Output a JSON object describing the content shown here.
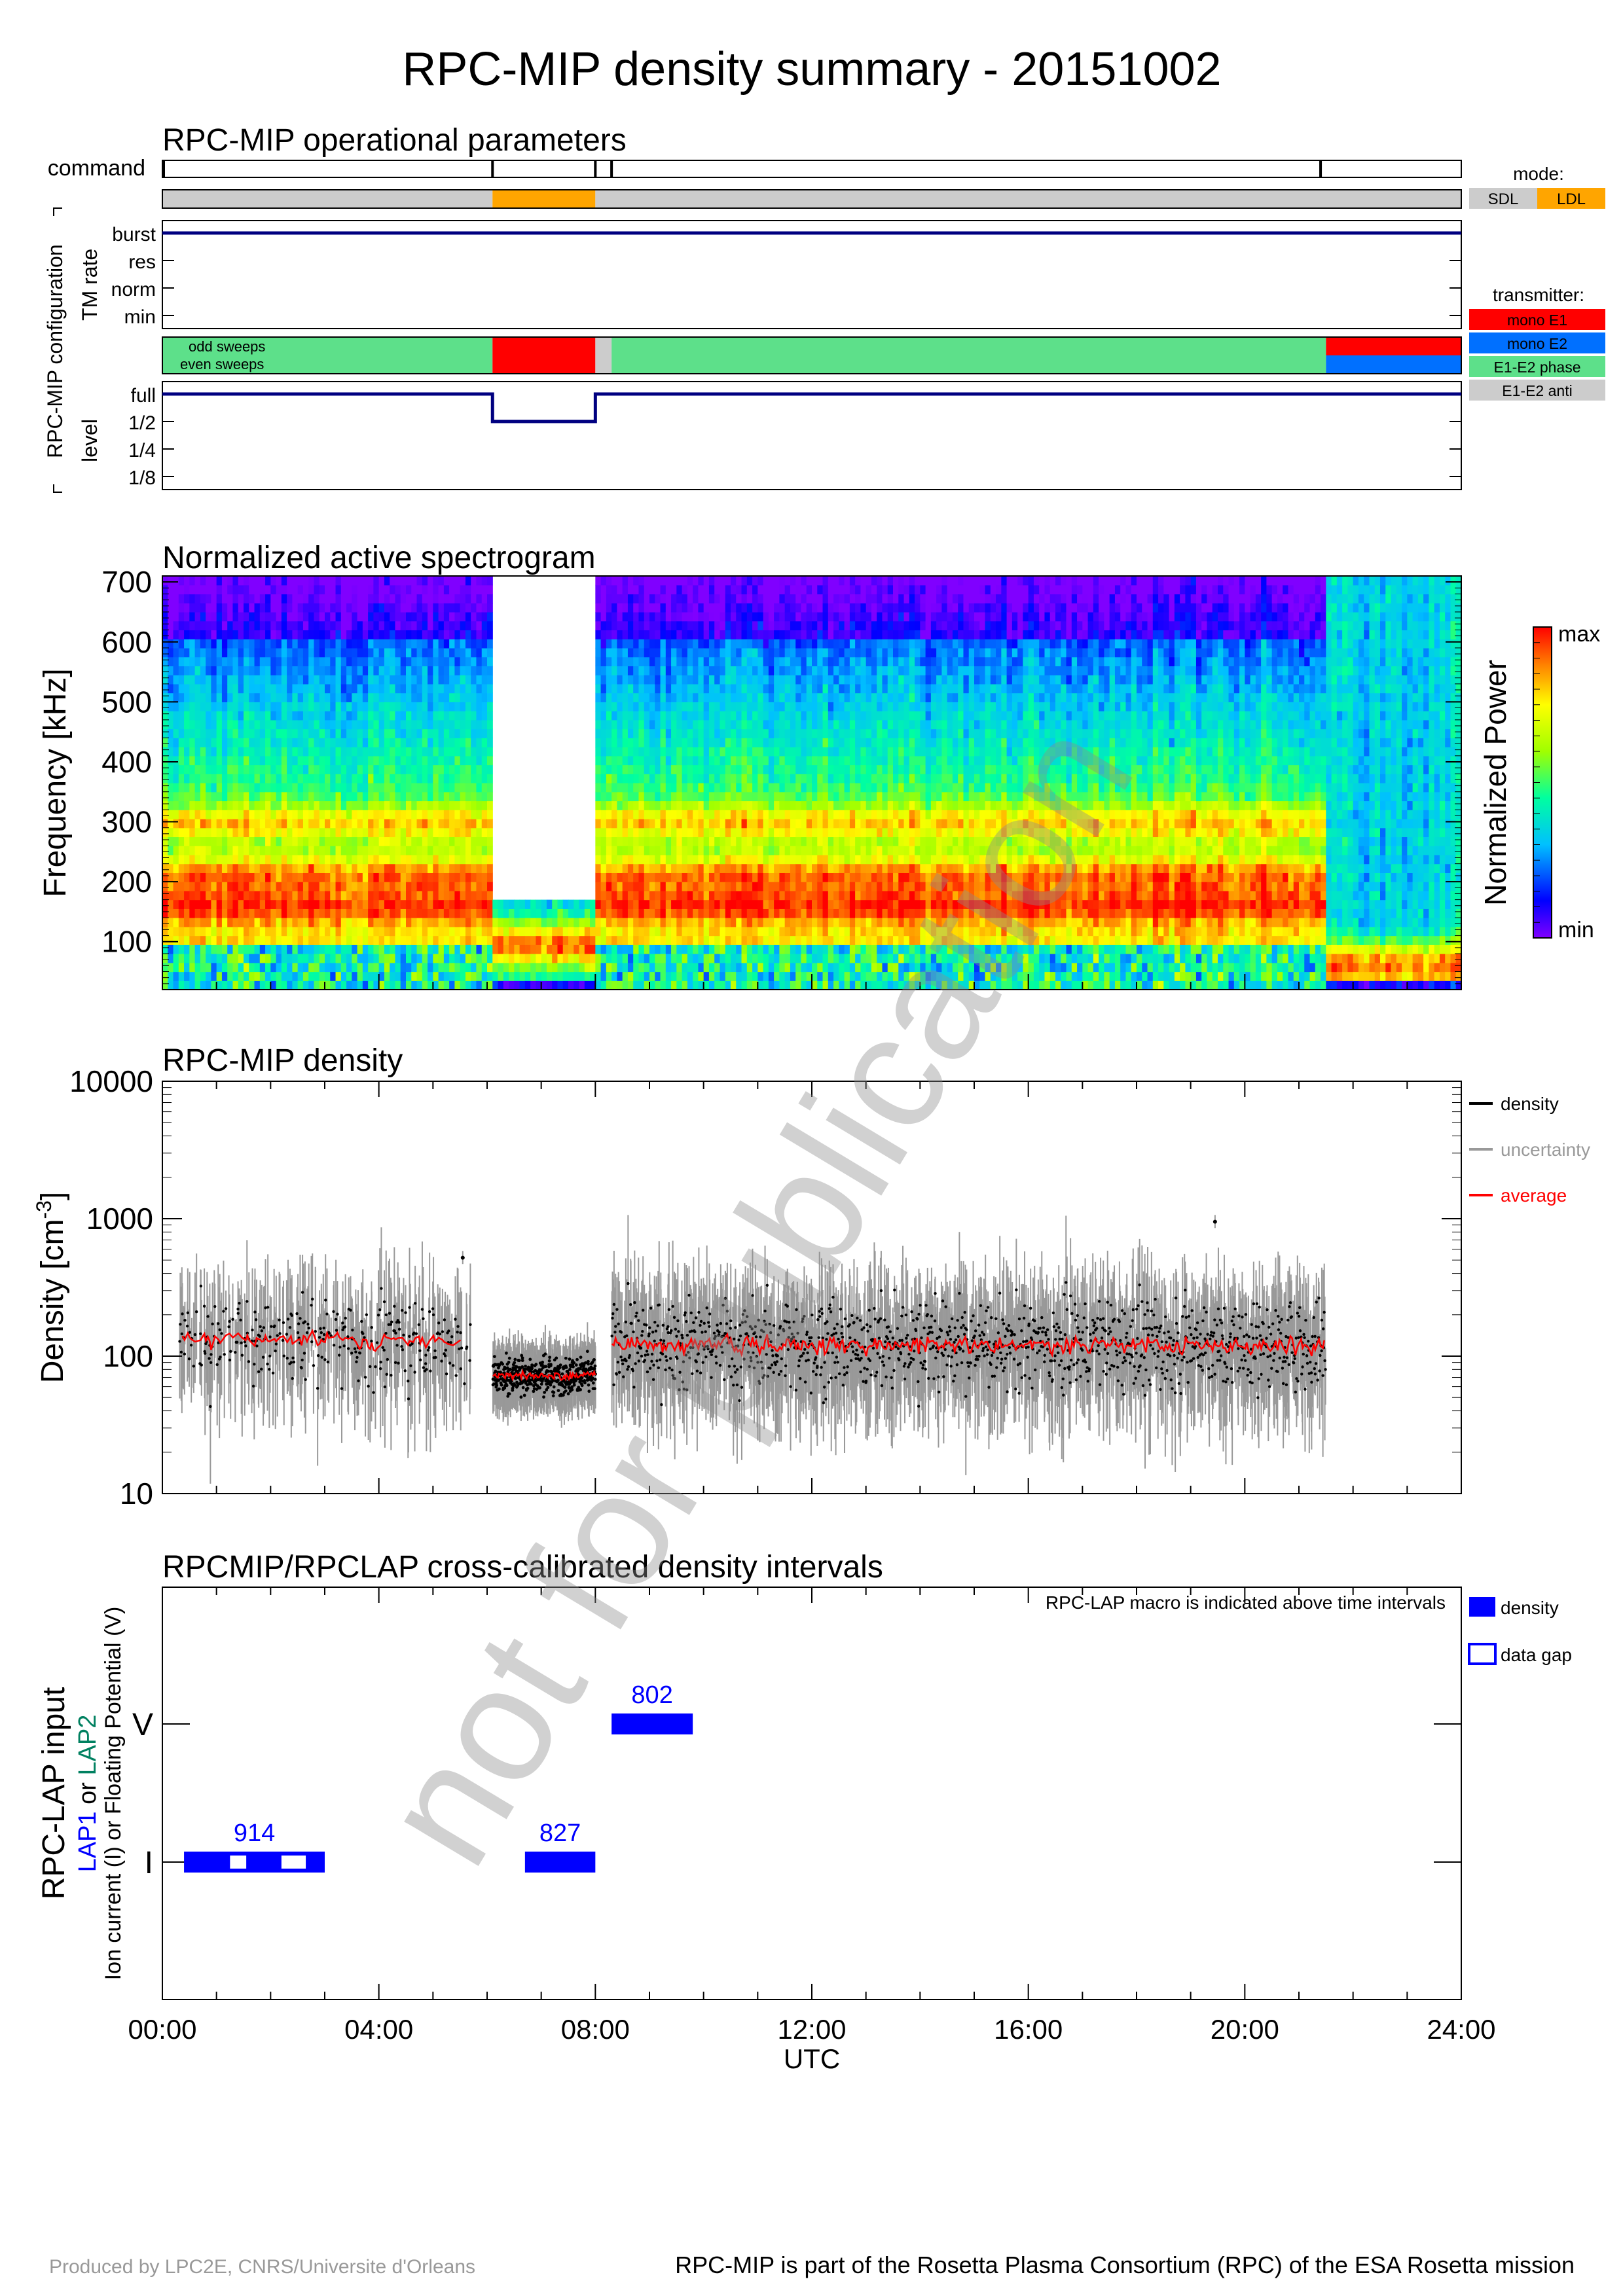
{
  "title": "RPC-MIP density summary - 20151002",
  "watermark": "not for publication",
  "ops": {
    "title": "RPC-MIP operational parameters",
    "command_label": "command",
    "config_label": "RPC-MIP configuration",
    "tm_label": "TM rate",
    "level_label": "level",
    "tm_levels": [
      "burst",
      "res",
      "norm",
      "min"
    ],
    "level_levels": [
      "full",
      "1/2",
      "1/4",
      "1/8"
    ],
    "sweep_labels": [
      "odd sweeps",
      "even sweeps"
    ],
    "mode_title": "mode:",
    "modes": [
      {
        "label": "SDL",
        "color": "#cccccc"
      },
      {
        "label": "LDL",
        "color": "#ffa500"
      }
    ],
    "transmitter_title": "transmitter:",
    "transmitters": [
      {
        "label": "mono E1",
        "color": "#ff0000"
      },
      {
        "label": "mono E2",
        "color": "#0070ff"
      },
      {
        "label": "E1-E2 phase",
        "color": "#5de08a"
      },
      {
        "label": "E1-E2 anti",
        "color": "#cccccc"
      }
    ],
    "command_ticks_h": [
      0.0,
      6.1,
      8.0,
      8.3,
      21.4
    ],
    "mode_segments": [
      {
        "start": 0.0,
        "end": 6.1,
        "mode": "SDL"
      },
      {
        "start": 6.1,
        "end": 8.0,
        "mode": "LDL"
      },
      {
        "start": 8.0,
        "end": 24.0,
        "mode": "SDL"
      }
    ],
    "tm_rate": "burst",
    "odd_sweep_segments": [
      {
        "start": 0.0,
        "end": 6.1,
        "tx": "E1-E2 phase"
      },
      {
        "start": 6.1,
        "end": 8.0,
        "tx": "mono E1"
      },
      {
        "start": 8.0,
        "end": 8.3,
        "tx": "E1-E2 anti"
      },
      {
        "start": 8.3,
        "end": 21.5,
        "tx": "E1-E2 phase"
      },
      {
        "start": 21.5,
        "end": 24.0,
        "tx": "mono E1"
      }
    ],
    "even_sweep_segments": [
      {
        "start": 0.0,
        "end": 6.1,
        "tx": "E1-E2 phase"
      },
      {
        "start": 6.1,
        "end": 8.0,
        "tx": "mono E1"
      },
      {
        "start": 8.0,
        "end": 8.3,
        "tx": "E1-E2 anti"
      },
      {
        "start": 8.3,
        "end": 21.5,
        "tx": "E1-E2 phase"
      },
      {
        "start": 21.5,
        "end": 24.0,
        "tx": "mono E2"
      }
    ],
    "level_steps": [
      {
        "start": 0.0,
        "end": 6.1,
        "level": "full"
      },
      {
        "start": 6.1,
        "end": 8.0,
        "level": "1/2"
      },
      {
        "start": 8.0,
        "end": 24.0,
        "level": "full"
      }
    ]
  },
  "chart_data": [
    {
      "type": "heatmap",
      "title": "Normalized active spectrogram",
      "ylabel": "Frequency [kHz]",
      "yticks": [
        100,
        200,
        300,
        400,
        500,
        600,
        700
      ],
      "ylim": [
        20,
        710
      ],
      "xlim": [
        0,
        24
      ],
      "colorbar_label": "Normalized Power",
      "colorbar_max": "max",
      "colorbar_min": "min",
      "gaps": [
        {
          "start": 6.1,
          "end": 8.0,
          "fmin": 175
        }
      ],
      "bands": [
        {
          "start": 0.0,
          "end": 6.1,
          "peaks_khz": [
            160,
            210,
            300
          ]
        },
        {
          "start": 6.1,
          "end": 8.0,
          "peaks_khz": [
            95
          ]
        },
        {
          "start": 8.3,
          "end": 21.5,
          "peaks_khz": [
            160,
            210,
            300
          ]
        },
        {
          "start": 21.5,
          "end": 24.0,
          "peaks_khz": [
            60
          ]
        }
      ]
    },
    {
      "type": "scatter",
      "title": "RPC-MIP density",
      "ylabel": "Density [cm",
      "ylabel_sup": "-3",
      "ylabel_end": "]",
      "yscale": "log",
      "yticks": [
        "10000",
        "1000",
        "100",
        "10"
      ],
      "ylim": [
        10,
        10000
      ],
      "xlim": [
        0,
        24
      ],
      "legend_position": "right",
      "series": [
        {
          "name": "density",
          "color": "#000000"
        },
        {
          "name": "uncertainty",
          "color": "#999999"
        },
        {
          "name": "average",
          "color": "#ff0000"
        }
      ],
      "data_intervals": [
        {
          "start": 0.3,
          "end": 5.7,
          "median": 130
        },
        {
          "start": 6.1,
          "end": 8.0,
          "median": 72
        },
        {
          "start": 8.3,
          "end": 21.5,
          "median": 120
        }
      ],
      "isolated_points": [
        {
          "x": 5.55,
          "y": 520
        },
        {
          "x": 19.45,
          "y": 950
        }
      ]
    },
    {
      "type": "bar",
      "title": "RPCMIP/RPCLAP cross-calibrated density intervals",
      "note": "RPC-LAP macro is indicated above time intervals",
      "ylabel": "RPC-LAP input",
      "ylabel2_parts": [
        {
          "text": "LAP1",
          "color": "#0000ff"
        },
        {
          "text": " or ",
          "color": "#000000"
        },
        {
          "text": "LAP2",
          "color": "#008060"
        }
      ],
      "ylabel3": "Ion current (I) or Floating Potential (V)",
      "ycats": [
        "V",
        "I"
      ],
      "legend": [
        {
          "label": "density",
          "filled": true
        },
        {
          "label": "data gap",
          "filled": false
        }
      ],
      "intervals": [
        {
          "start": 0.4,
          "end": 3.0,
          "cat": "I",
          "macro": "914",
          "gaps": [
            [
              1.25,
              1.55
            ],
            [
              2.2,
              2.65
            ]
          ]
        },
        {
          "start": 6.7,
          "end": 8.0,
          "cat": "I",
          "macro": "827",
          "gaps": []
        },
        {
          "start": 8.3,
          "end": 9.8,
          "cat": "V",
          "macro": "802",
          "gaps": []
        }
      ]
    }
  ],
  "time_axis": {
    "label": "UTC",
    "ticks": [
      "00:00",
      "04:00",
      "08:00",
      "12:00",
      "16:00",
      "20:00",
      "24:00"
    ]
  },
  "footer": {
    "left": "Produced by LPC2E, CNRS/Universite d'Orleans",
    "right": "RPC-MIP is part of the Rosetta Plasma Consortium (RPC) of the ESA Rosetta mission"
  }
}
